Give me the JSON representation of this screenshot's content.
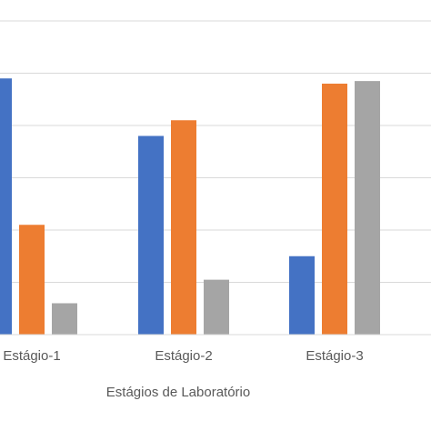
{
  "chart_data": {
    "type": "bar",
    "categories": [
      "Estágio-1",
      "Estágio-2",
      "Estágio-3"
    ],
    "series": [
      {
        "color": "#4472C4",
        "values": [
          4.9,
          3.8,
          1.5
        ]
      },
      {
        "color": "#ED7D31",
        "values": [
          2.1,
          4.1,
          4.8
        ]
      },
      {
        "color": "#A5A5A5",
        "values": [
          0.6,
          1.05,
          4.85
        ]
      }
    ],
    "xlabel": "Estágios de Laboratório",
    "ylim": [
      0,
      6
    ],
    "grid": true,
    "gridline_color": "#D9D9D9"
  }
}
